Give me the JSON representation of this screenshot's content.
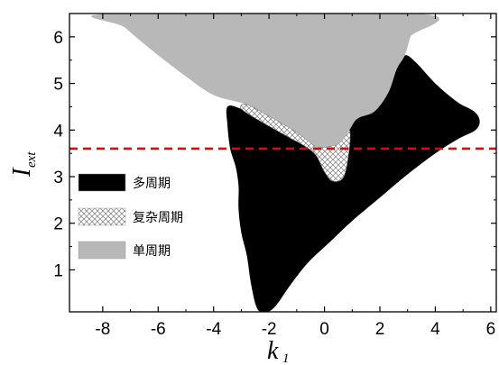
{
  "chart_data": {
    "type": "area",
    "title": "",
    "xlabel": "k",
    "xlabel_subscript": "1",
    "ylabel": "I",
    "ylabel_subscript": "ext",
    "xlim": [
      -9.2,
      6.2
    ],
    "ylim": [
      0.1,
      6.5
    ],
    "xticks": [
      -8,
      -6,
      -4,
      -2,
      0,
      2,
      4,
      6
    ],
    "yticks": [
      1,
      2,
      3,
      4,
      5,
      6
    ],
    "xtick_labels": [
      "-8",
      "-6",
      "-4",
      "-2",
      "0",
      "2",
      "4",
      "6"
    ],
    "ytick_labels": [
      "1",
      "2",
      "3",
      "4",
      "5",
      "6"
    ],
    "grid": false,
    "legend_position": "left",
    "colors": {
      "multi_period": "#000000",
      "complex_period": "#ffffff",
      "single_period": "#b8b8b8",
      "reference_line": "#cc1111"
    },
    "series": [
      {
        "name": "多周期",
        "fill": "solid-black",
        "boundary": [
          [
            -3.5,
            4.5
          ],
          [
            -3.5,
            4.1
          ],
          [
            -3.4,
            3.6
          ],
          [
            -3.2,
            3.2
          ],
          [
            -3.1,
            2.8
          ],
          [
            -3.1,
            2.3
          ],
          [
            -3.0,
            1.8
          ],
          [
            -2.8,
            1.3
          ],
          [
            -2.65,
            0.7
          ],
          [
            -2.45,
            0.2
          ],
          [
            -2.2,
            0.08
          ],
          [
            -1.8,
            0.2
          ],
          [
            -1.2,
            0.7
          ],
          [
            -0.6,
            1.15
          ],
          [
            0.2,
            1.6
          ],
          [
            1.0,
            2.05
          ],
          [
            2.0,
            2.55
          ],
          [
            3.0,
            3.05
          ],
          [
            4.0,
            3.5
          ],
          [
            4.8,
            3.8
          ],
          [
            5.45,
            4.0
          ],
          [
            5.6,
            4.2
          ],
          [
            5.4,
            4.4
          ],
          [
            4.8,
            4.6
          ],
          [
            4.0,
            5.0
          ],
          [
            3.3,
            5.45
          ],
          [
            2.9,
            5.6
          ],
          [
            2.6,
            5.3
          ],
          [
            2.3,
            4.8
          ],
          [
            1.8,
            4.4
          ],
          [
            1.2,
            4.25
          ],
          [
            0.9,
            4.0
          ],
          [
            0.9,
            3.6
          ],
          [
            0.7,
            3.0
          ],
          [
            0.3,
            2.9
          ],
          [
            0.0,
            3.1
          ],
          [
            -0.3,
            3.45
          ],
          [
            -0.7,
            3.65
          ],
          [
            -1.3,
            3.85
          ],
          [
            -2.2,
            4.15
          ],
          [
            -3.0,
            4.45
          ]
        ]
      },
      {
        "name": "复杂周期",
        "fill": "cross-hatch",
        "boundary": [
          [
            -3.0,
            4.45
          ],
          [
            -2.2,
            4.15
          ],
          [
            -1.3,
            3.85
          ],
          [
            -0.7,
            3.65
          ],
          [
            -0.3,
            3.45
          ],
          [
            0.0,
            3.1
          ],
          [
            0.3,
            2.9
          ],
          [
            0.7,
            3.0
          ],
          [
            0.9,
            3.6
          ],
          [
            0.9,
            4.0
          ],
          [
            0.6,
            3.75
          ],
          [
            0.2,
            3.65
          ],
          [
            -0.3,
            3.65
          ],
          [
            -1.0,
            3.95
          ],
          [
            -2.0,
            4.3
          ],
          [
            -2.8,
            4.55
          ]
        ]
      },
      {
        "name": "单周期",
        "fill": "solid-gray",
        "boundary": [
          [
            -7.7,
            6.5
          ],
          [
            -7.2,
            6.2
          ],
          [
            -6.2,
            5.7
          ],
          [
            -5.0,
            5.15
          ],
          [
            -4.0,
            4.75
          ],
          [
            -2.8,
            4.55
          ],
          [
            -2.0,
            4.3
          ],
          [
            -1.0,
            3.95
          ],
          [
            -0.3,
            3.65
          ],
          [
            0.2,
            3.65
          ],
          [
            0.6,
            3.75
          ],
          [
            0.9,
            4.0
          ],
          [
            1.2,
            4.25
          ],
          [
            1.8,
            4.4
          ],
          [
            2.3,
            4.8
          ],
          [
            2.6,
            5.3
          ],
          [
            2.9,
            5.6
          ],
          [
            3.1,
            6.0
          ],
          [
            3.4,
            6.5
          ]
        ]
      }
    ],
    "reference_line": {
      "orientation": "horizontal",
      "y": 3.6,
      "style": "dashed"
    },
    "legend": [
      {
        "label": "多周期",
        "swatch": "solid-black"
      },
      {
        "label": "复杂周期",
        "swatch": "cross-hatch"
      },
      {
        "label": "单周期",
        "swatch": "solid-gray"
      }
    ]
  }
}
